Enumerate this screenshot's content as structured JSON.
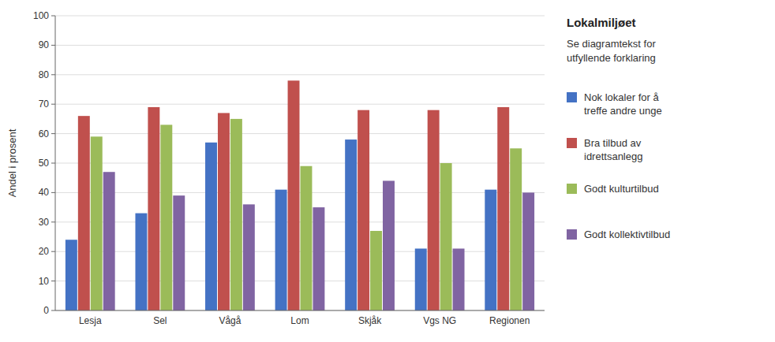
{
  "chart_data": {
    "type": "bar",
    "title": "Lokalmiljøet",
    "subtitle": "Se diagramtekst for\nutfyllende forklaring",
    "categories": [
      "Lesja",
      "Sel",
      "Vågå",
      "Lom",
      "Skjåk",
      "Vgs NG",
      "Regionen"
    ],
    "series": [
      {
        "name": "Nok lokaler for å\ntreffe andre unge",
        "color": "#4472C4",
        "values": [
          24,
          33,
          57,
          41,
          58,
          21,
          41
        ]
      },
      {
        "name": "Bra tilbud av\nidrettsanlegg",
        "color": "#C0504D",
        "values": [
          66,
          69,
          67,
          78,
          68,
          68,
          69
        ]
      },
      {
        "name": "Godt kulturtilbud",
        "color": "#9BBB59",
        "values": [
          59,
          63,
          65,
          49,
          27,
          50,
          55
        ]
      },
      {
        "name": "Godt kollektivtilbud",
        "color": "#8064A2",
        "values": [
          47,
          39,
          36,
          35,
          44,
          21,
          40
        ]
      }
    ],
    "ylabel": "Andel i prosent",
    "ylim": [
      0,
      100
    ],
    "yticks": [
      0,
      10,
      20,
      30,
      40,
      50,
      60,
      70,
      80,
      90,
      100
    ],
    "grid": true,
    "legend": "right"
  }
}
